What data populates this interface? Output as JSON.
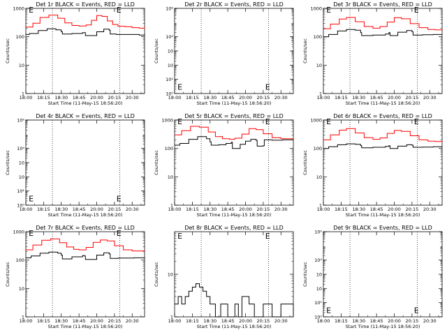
{
  "colors": {
    "events": "#000000",
    "lld": "#ff0000",
    "background": "#ffffff"
  },
  "xaxis": {
    "label": "Start Time (11-May-15 18:56:20)",
    "tick_labels": [
      "18:00",
      "18:15",
      "18:30",
      "18:45",
      "20:00",
      "20:15",
      "20:30"
    ]
  },
  "chart_data": [
    {
      "type": "line",
      "title": "Det 1r BLACK = Events, RED = LLD",
      "ylabel": "Counts/sec",
      "yscale": "log",
      "ylim": [
        1,
        1000
      ],
      "ytick_labels": [
        "1000",
        "100",
        "10",
        "1"
      ],
      "ytick_values": [
        1000,
        100,
        10,
        1
      ],
      "event_markers": [
        {
          "label": "E",
          "x": 0.3,
          "y": 900
        },
        {
          "label": "E",
          "x": 5.25,
          "y": 900
        }
      ],
      "series": [
        {
          "color": "#000000",
          "x": [
            0,
            0.2,
            0.7,
            1.2,
            1.7,
            2.0,
            2.06,
            2.6,
            3.2,
            3.3,
            3.36,
            4.0,
            4.4,
            4.7,
            4.76,
            5.1,
            6.4,
            6.7
          ],
          "y": [
            120,
            130,
            165,
            190,
            175,
            150,
            125,
            130,
            140,
            140,
            110,
            150,
            185,
            170,
            125,
            120,
            115,
            125
          ]
        },
        {
          "color": "#ff0000",
          "x": [
            0,
            0.4,
            0.8,
            1.3,
            1.8,
            2.2,
            2.6,
            3.0,
            3.4,
            3.7,
            4.0,
            4.3,
            4.6,
            4.9,
            5.2,
            5.6,
            6.0,
            6.4,
            6.7
          ],
          "y": [
            220,
            300,
            480,
            580,
            450,
            310,
            250,
            240,
            260,
            380,
            560,
            520,
            360,
            270,
            235,
            225,
            210,
            200,
            215
          ]
        }
      ]
    },
    {
      "type": "line",
      "title": "Det 2r BLACK = Events, RED = LLD",
      "ylabel": "Counts/sec",
      "yscale": "log",
      "ylim": [
        1,
        1000000
      ],
      "ytick_labels": [
        "10⁶",
        "10⁴",
        "10⁳",
        "10⁲",
        "10¹",
        "10⁰"
      ],
      "ytick_values": [
        1000000,
        10000,
        1000,
        100,
        10,
        1
      ],
      "event_markers": [
        {
          "label": "E",
          "x": 0.3,
          "y": 3
        },
        {
          "label": "E",
          "x": 5.25,
          "y": 3
        }
      ],
      "series": []
    },
    {
      "type": "line",
      "title": "Det 3r BLACK = Events, RED = LLD",
      "ylabel": "Counts/sec",
      "yscale": "log",
      "ylim": [
        1,
        1000
      ],
      "ytick_labels": [
        "1000",
        "100",
        "10",
        "1"
      ],
      "ytick_values": [
        1000,
        100,
        10,
        1
      ],
      "event_markers": [
        {
          "label": "E",
          "x": 0.3,
          "y": 900
        },
        {
          "label": "E",
          "x": 5.25,
          "y": 900
        }
      ],
      "series": [
        {
          "color": "#000000",
          "x": [
            0,
            0.3,
            0.8,
            1.3,
            1.8,
            2.1,
            2.16,
            2.8,
            3.5,
            3.7,
            3.76,
            4.2,
            4.7,
            5.0,
            5.06,
            5.6,
            6.2,
            6.7
          ],
          "y": [
            100,
            120,
            160,
            180,
            170,
            140,
            110,
            115,
            125,
            140,
            110,
            145,
            165,
            150,
            115,
            118,
            120,
            125
          ]
        },
        {
          "color": "#ff0000",
          "x": [
            0,
            0.4,
            0.9,
            1.3,
            1.8,
            2.3,
            2.8,
            3.2,
            3.6,
            4.0,
            4.4,
            4.9,
            5.4,
            5.9,
            6.3,
            6.7
          ],
          "y": [
            190,
            280,
            420,
            480,
            340,
            230,
            200,
            230,
            330,
            470,
            430,
            290,
            210,
            180,
            175,
            190
          ]
        }
      ]
    },
    {
      "type": "line",
      "title": "Det 4r BLACK = Events, RED = LLD",
      "ylabel": "Counts/sec",
      "yscale": "log",
      "ylim": [
        1,
        1000000
      ],
      "ytick_labels": [
        "10⁶",
        "10⁴",
        "10⁳",
        "10⁲",
        "10¹",
        "10⁰"
      ],
      "ytick_values": [
        1000000,
        10000,
        1000,
        100,
        10,
        1
      ],
      "event_markers": [
        {
          "label": "E",
          "x": 0.3,
          "y": 3
        },
        {
          "label": "E",
          "x": 5.25,
          "y": 3
        }
      ],
      "series": []
    },
    {
      "type": "line",
      "title": "Det 5r BLACK = Events, RED = LLD",
      "ylabel": "Counts/sec",
      "yscale": "log",
      "ylim": [
        1,
        1000
      ],
      "ytick_labels": [
        "1000",
        "100",
        "10",
        "1"
      ],
      "ytick_values": [
        1000,
        100,
        10,
        1
      ],
      "event_markers": [
        {
          "label": "E",
          "x": 0.3,
          "y": 900
        },
        {
          "label": "E",
          "x": 5.25,
          "y": 900
        }
      ],
      "series": [
        {
          "color": "#000000",
          "x": [
            0,
            0.3,
            0.8,
            1.3,
            1.8,
            2.0,
            2.06,
            2.5,
            2.9,
            3.2,
            3.26,
            3.7,
            4.0,
            4.3,
            4.6,
            4.66,
            5.0,
            5.06,
            5.5,
            6.1,
            6.7
          ],
          "y": [
            130,
            150,
            210,
            260,
            220,
            170,
            130,
            135,
            150,
            165,
            100,
            140,
            180,
            210,
            190,
            120,
            125,
            200,
            195,
            200,
            210
          ]
        },
        {
          "color": "#ff0000",
          "x": [
            0,
            0.4,
            0.9,
            1.4,
            1.9,
            2.3,
            2.7,
            3.1,
            3.4,
            3.8,
            4.2,
            4.6,
            5.0,
            5.5,
            6.0,
            6.7
          ],
          "y": [
            300,
            420,
            600,
            560,
            380,
            260,
            220,
            210,
            230,
            320,
            500,
            460,
            330,
            240,
            220,
            230
          ]
        }
      ]
    },
    {
      "type": "line",
      "title": "Det 6r BLACK = Events, RED = LLD",
      "ylabel": "Counts/sec",
      "yscale": "log",
      "ylim": [
        1,
        1000
      ],
      "ytick_labels": [
        "1000",
        "100",
        "10",
        "1"
      ],
      "ytick_values": [
        1000,
        100,
        10,
        1
      ],
      "event_markers": [
        {
          "label": "E",
          "x": 0.3,
          "y": 900
        },
        {
          "label": "E",
          "x": 5.25,
          "y": 900
        }
      ],
      "series": [
        {
          "color": "#000000",
          "x": [
            0,
            0.3,
            0.8,
            1.3,
            1.8,
            2.1,
            2.16,
            2.8,
            3.5,
            3.7,
            3.76,
            4.2,
            4.7,
            5.0,
            5.06,
            5.6,
            6.2,
            6.7
          ],
          "y": [
            100,
            115,
            135,
            145,
            140,
            125,
            105,
            110,
            118,
            125,
            100,
            120,
            135,
            130,
            110,
            112,
            115,
            120
          ]
        },
        {
          "color": "#ff0000",
          "x": [
            0,
            0.4,
            0.9,
            1.3,
            1.8,
            2.3,
            2.8,
            3.2,
            3.6,
            4.0,
            4.4,
            4.9,
            5.4,
            5.9,
            6.3,
            6.7
          ],
          "y": [
            200,
            300,
            440,
            500,
            350,
            240,
            210,
            235,
            340,
            430,
            400,
            280,
            200,
            180,
            175,
            190
          ]
        }
      ]
    },
    {
      "type": "line",
      "title": "Det 7r BLACK = Events, RED = LLD",
      "ylabel": "Counts/sec",
      "yscale": "log",
      "ylim": [
        1,
        1000
      ],
      "ytick_labels": [
        "1000",
        "100",
        "10",
        "1"
      ],
      "ytick_values": [
        1000,
        100,
        10,
        1
      ],
      "event_markers": [
        {
          "label": "E",
          "x": 0.3,
          "y": 900
        },
        {
          "label": "E",
          "x": 5.25,
          "y": 900
        }
      ],
      "series": [
        {
          "color": "#000000",
          "x": [
            0,
            0.3,
            0.8,
            1.3,
            1.8,
            2.0,
            2.06,
            2.6,
            3.2,
            3.3,
            3.36,
            4.0,
            4.4,
            4.7,
            4.76,
            5.2,
            6.1,
            6.7
          ],
          "y": [
            120,
            140,
            175,
            190,
            175,
            150,
            110,
            130,
            145,
            140,
            105,
            150,
            180,
            165,
            115,
            118,
            120,
            125
          ]
        },
        {
          "color": "#ff0000",
          "x": [
            0,
            0.4,
            0.9,
            1.4,
            1.9,
            2.3,
            2.7,
            3.0,
            3.4,
            3.8,
            4.2,
            4.6,
            5.0,
            5.5,
            6.0,
            6.7
          ],
          "y": [
            230,
            340,
            500,
            560,
            410,
            290,
            240,
            230,
            280,
            420,
            510,
            470,
            320,
            230,
            210,
            215
          ]
        }
      ]
    },
    {
      "type": "line",
      "title": "Det 8r BLACK = Events, RED = LLD",
      "ylabel": "Counts/sec",
      "yscale": "log",
      "ylim": [
        1,
        100
      ],
      "ytick_labels": [
        "10",
        "1"
      ],
      "ytick_values": [
        10,
        1
      ],
      "event_markers": [
        {
          "label": "E",
          "x": 0.3,
          "y": 80
        },
        {
          "label": "E",
          "x": 5.25,
          "y": 80
        }
      ],
      "series": [
        {
          "color": "#000000",
          "x": [
            0,
            0.2,
            0.4,
            0.6,
            0.8,
            1.0,
            1.2,
            1.4,
            1.6,
            1.8,
            2.0,
            2.3,
            2.6,
            3.0,
            3.4,
            3.6,
            3.8,
            4.0,
            4.2,
            4.5,
            5.0,
            5.5,
            6.0,
            6.7
          ],
          "y": [
            2,
            3,
            2,
            3,
            4,
            5,
            6,
            5,
            4,
            3,
            2,
            1,
            2,
            1,
            2,
            1,
            3,
            3,
            2,
            1,
            2,
            1,
            2,
            1
          ]
        }
      ]
    },
    {
      "type": "line",
      "title": "Det 9r BLACK = Events, RED = LLD",
      "ylabel": "Counts/sec",
      "yscale": "log",
      "ylim": [
        1,
        1000000
      ],
      "ytick_labels": [
        "10⁶",
        "10⁴",
        "10⁳",
        "10⁲",
        "10¹",
        "10⁰"
      ],
      "ytick_values": [
        1000000,
        10000,
        1000,
        100,
        10,
        1
      ],
      "event_markers": [
        {
          "label": "E",
          "x": 0.3,
          "y": 3
        },
        {
          "label": "E",
          "x": 5.25,
          "y": 3
        }
      ],
      "series": []
    }
  ]
}
